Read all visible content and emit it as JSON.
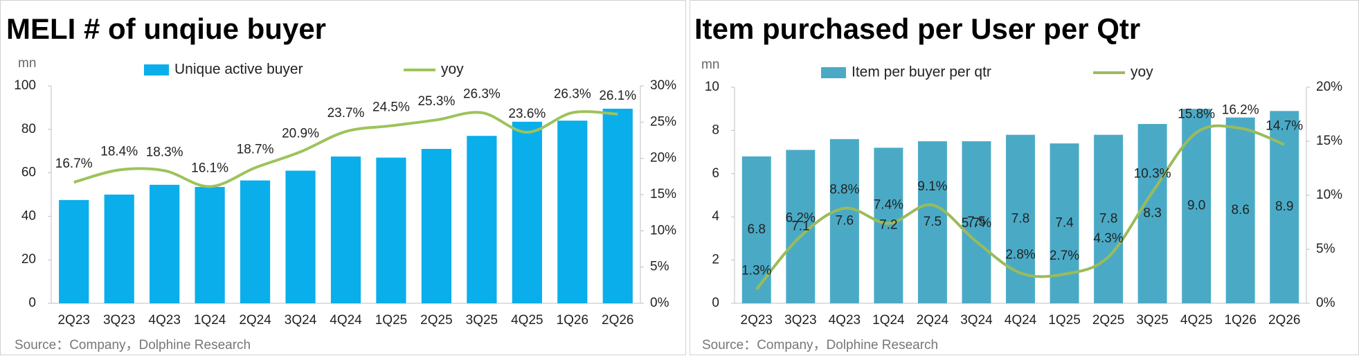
{
  "chart_data": [
    {
      "type": "bar-line",
      "title": "MELI # of unqiue buyer",
      "y_unit": "mn",
      "source": "Source：Company，Dolphine Research",
      "categories": [
        "2Q23",
        "3Q23",
        "4Q23",
        "1Q24",
        "2Q24",
        "3Q24",
        "4Q24",
        "1Q25",
        "2Q25",
        "3Q25",
        "4Q25",
        "1Q26",
        "2Q26"
      ],
      "series": [
        {
          "name": "Unique active buyer",
          "kind": "bar",
          "color": "#0aaeea",
          "values": [
            47.5,
            50,
            54.5,
            53.5,
            56.5,
            61,
            67.5,
            67,
            71,
            77,
            83.5,
            84,
            89.5
          ]
        },
        {
          "name": "yoy",
          "kind": "line",
          "axis": "y2",
          "color": "#9dc35a",
          "values": [
            16.7,
            18.4,
            18.3,
            16.1,
            18.7,
            20.9,
            23.7,
            24.5,
            25.3,
            26.3,
            23.6,
            26.3,
            26.1
          ],
          "value_labels": [
            "16.7%",
            "18.4%",
            "18.3%",
            "16.1%",
            "18.7%",
            "20.9%",
            "23.7%",
            "24.5%",
            "25.3%",
            "26.3%",
            "23.6%",
            "26.3%",
            "26.1%"
          ]
        }
      ],
      "ylim": [
        0,
        100
      ],
      "yticks": [
        0,
        20,
        40,
        60,
        80,
        100
      ],
      "y2lim": [
        0,
        30
      ],
      "y2ticks": [
        {
          "value": 0,
          "label": "0%"
        },
        {
          "value": 5,
          "label": "5%"
        },
        {
          "value": 10,
          "label": "10%"
        },
        {
          "value": 15,
          "label": "15%"
        },
        {
          "value": 20,
          "label": "20%"
        },
        {
          "value": 25,
          "label": "25%"
        },
        {
          "value": 30,
          "label": "30%"
        }
      ],
      "legend": "top"
    },
    {
      "type": "bar-line",
      "title": "Item purchased per User per Qtr",
      "y_unit": "mn",
      "source": "Source：Company，Dolphine Research",
      "categories": [
        "2Q23",
        "3Q23",
        "4Q23",
        "1Q24",
        "2Q24",
        "3Q24",
        "4Q24",
        "1Q25",
        "2Q25",
        "3Q25",
        "4Q25",
        "1Q26",
        "2Q26"
      ],
      "series": [
        {
          "name": "Item per buyer per qtr",
          "kind": "bar",
          "color": "#4aaac6",
          "values": [
            6.8,
            7.1,
            7.6,
            7.2,
            7.5,
            7.5,
            7.8,
            7.4,
            7.8,
            8.3,
            9.0,
            8.6,
            8.9
          ],
          "value_labels": [
            "6.8",
            "7.1",
            "7.6",
            "7.2",
            "7.5",
            "7.5",
            "7.8",
            "7.4",
            "7.8",
            "8.3",
            "9.0",
            "8.6",
            "8.9"
          ]
        },
        {
          "name": "yoy",
          "kind": "line",
          "axis": "y2",
          "color": "#9bbb59",
          "values": [
            1.3,
            6.2,
            8.8,
            7.4,
            9.1,
            5.7,
            2.8,
            2.7,
            4.3,
            10.3,
            15.8,
            16.2,
            14.7
          ],
          "value_labels": [
            "1.3%",
            "6.2%",
            "8.8%",
            "7.4%",
            "9.1%",
            "5.7%",
            "2.8%",
            "2.7%",
            "4.3%",
            "10.3%",
            "15.8%",
            "16.2%",
            "14.7%"
          ]
        }
      ],
      "ylim": [
        0,
        10
      ],
      "yticks": [
        0,
        2,
        4,
        6,
        8,
        10
      ],
      "y2lim": [
        0,
        20
      ],
      "y2ticks": [
        {
          "value": 0,
          "label": "0%"
        },
        {
          "value": 5,
          "label": "5%"
        },
        {
          "value": 10,
          "label": "10%"
        },
        {
          "value": 15,
          "label": "15%"
        },
        {
          "value": 20,
          "label": "20%"
        }
      ],
      "legend": "top"
    }
  ]
}
